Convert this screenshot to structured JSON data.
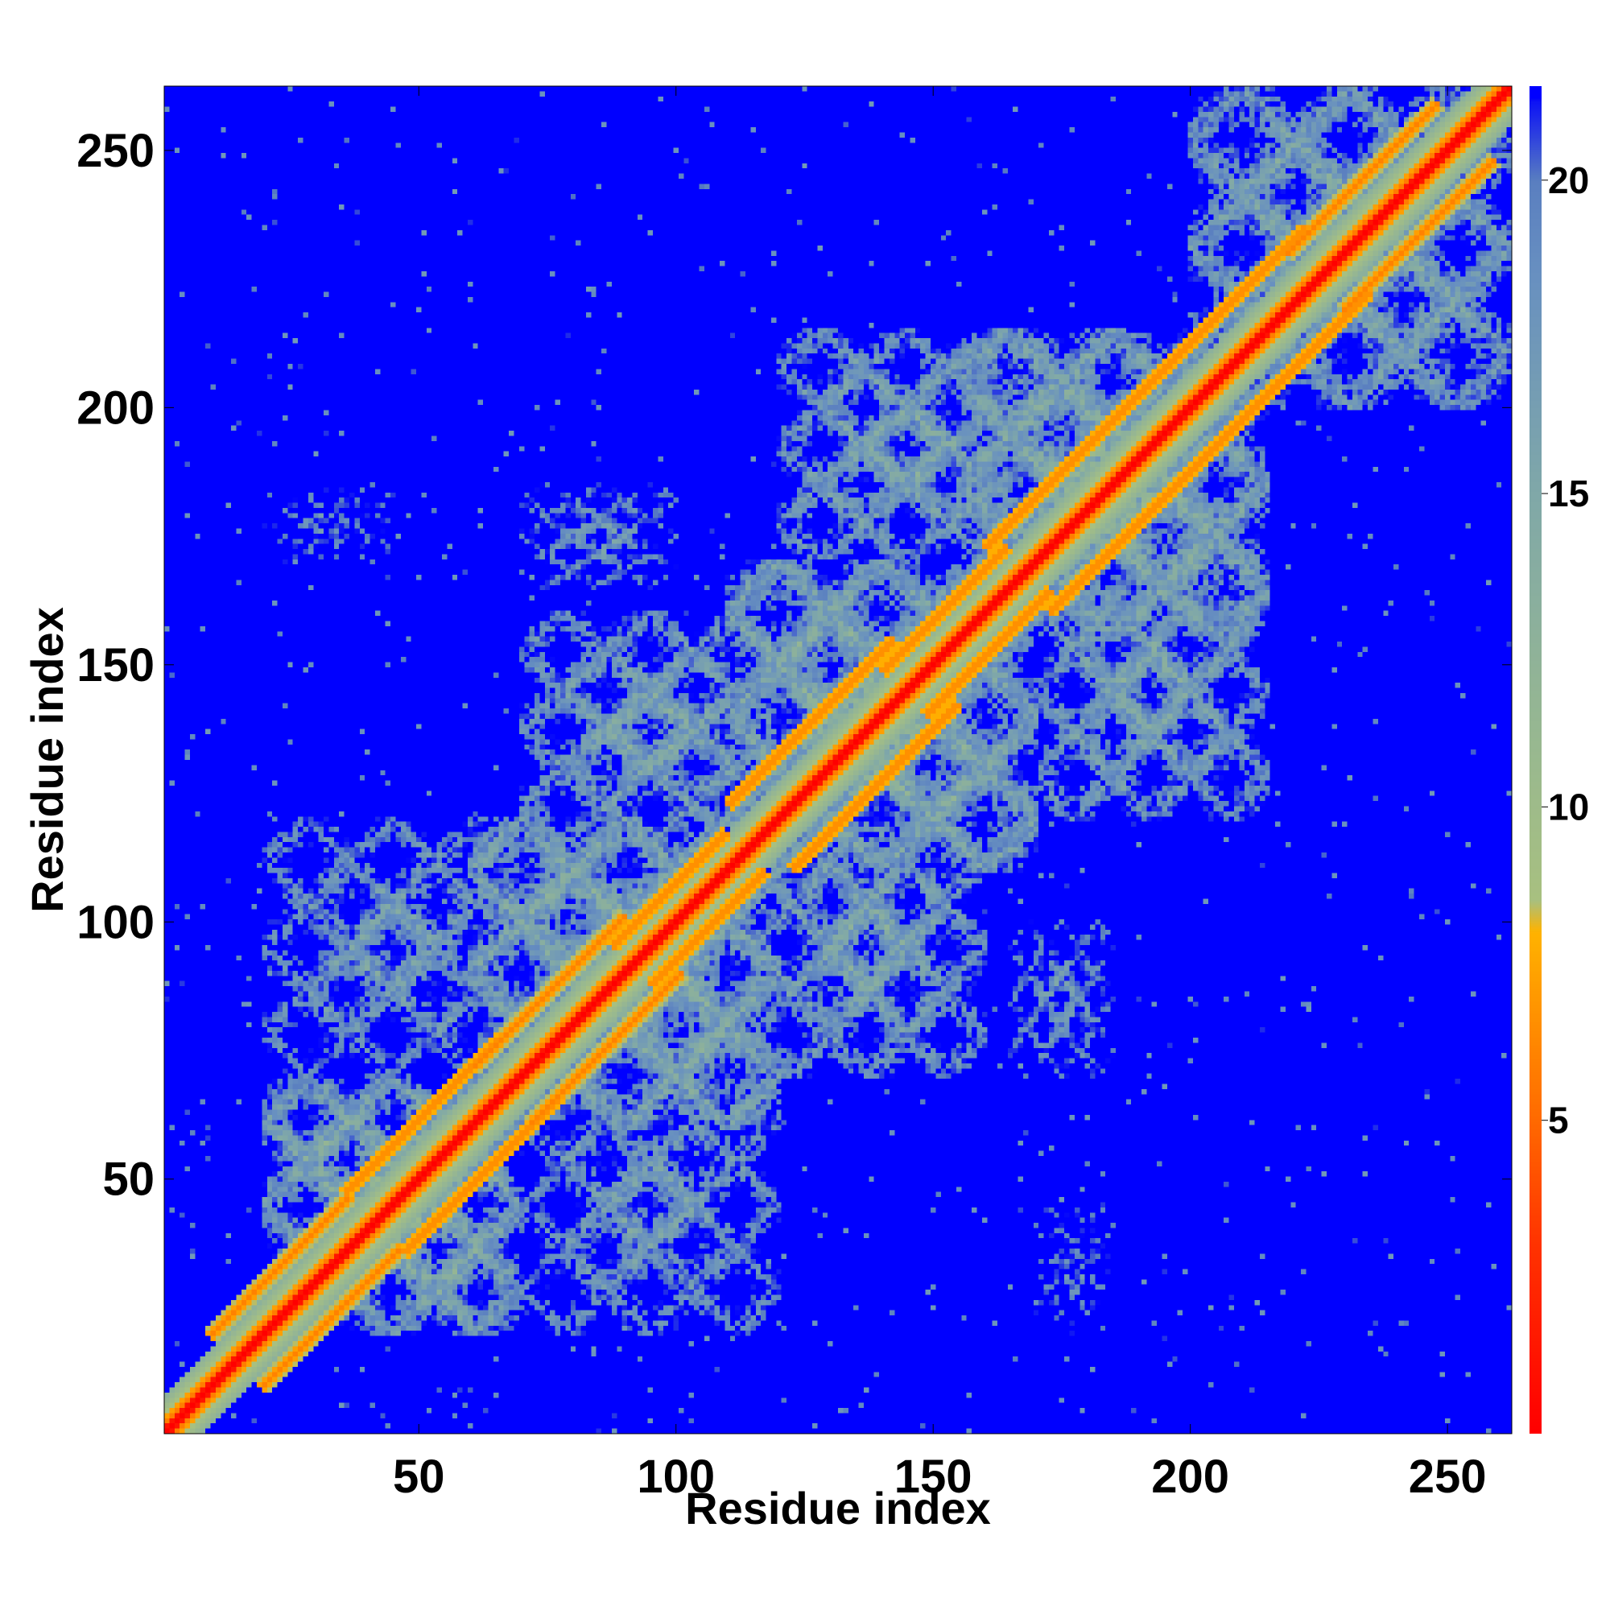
{
  "chart_data": {
    "type": "heatmap",
    "title": "",
    "xlabel": "Residue index",
    "ylabel": "Residue index",
    "x_range": [
      1,
      262
    ],
    "y_range": [
      1,
      262
    ],
    "x_ticks": [
      50,
      100,
      150,
      200,
      250
    ],
    "y_ticks": [
      50,
      100,
      150,
      200,
      250
    ],
    "colorbar": {
      "range": [
        0,
        21.5
      ],
      "ticks": [
        5,
        10,
        15,
        20
      ],
      "color_stops": [
        {
          "value": 0,
          "color": "#ff0000"
        },
        {
          "value": 3,
          "color": "#ff3300"
        },
        {
          "value": 5,
          "color": "#ff6a00"
        },
        {
          "value": 7,
          "color": "#ff9a00"
        },
        {
          "value": 8,
          "color": "#ffb300"
        },
        {
          "value": 8.5,
          "color": "#a8c080"
        },
        {
          "value": 11,
          "color": "#98b890"
        },
        {
          "value": 15,
          "color": "#80a8a8"
        },
        {
          "value": 18.5,
          "color": "#6890c0"
        },
        {
          "value": 20,
          "color": "#5a7fc0"
        },
        {
          "value": 21.5,
          "color": "#0000ff"
        }
      ],
      "out_of_range_color": "#0000ff"
    },
    "matrix_symmetric": true,
    "diagonal_value": 0,
    "helix_blocks": [
      [
        18,
        38
      ],
      [
        45,
        68
      ],
      [
        70,
        92
      ],
      [
        95,
        110
      ],
      [
        120,
        145
      ],
      [
        148,
        165
      ],
      [
        170,
        195
      ],
      [
        200,
        225
      ],
      [
        228,
        250
      ]
    ],
    "contact_regions": [
      {
        "x": [
          20,
          70
        ],
        "y": [
          20,
          70
        ],
        "mean_distance": 12
      },
      {
        "x": [
          60,
          120
        ],
        "y": [
          60,
          120
        ],
        "mean_distance": 12
      },
      {
        "x": [
          110,
          170
        ],
        "y": [
          110,
          170
        ],
        "mean_distance": 12
      },
      {
        "x": [
          155,
          215
        ],
        "y": [
          155,
          215
        ],
        "mean_distance": 12
      },
      {
        "x": [
          200,
          262
        ],
        "y": [
          200,
          262
        ],
        "mean_distance": 13
      },
      {
        "x": [
          120,
          170
        ],
        "y": [
          170,
          215
        ],
        "mean_distance": 14
      },
      {
        "x": [
          70,
          120
        ],
        "y": [
          115,
          160
        ],
        "mean_distance": 14
      },
      {
        "x": [
          20,
          70
        ],
        "y": [
          70,
          120
        ],
        "mean_distance": 15
      },
      {
        "x": [
          70,
          100
        ],
        "y": [
          165,
          185
        ],
        "mean_distance": 16
      },
      {
        "x": [
          20,
          45
        ],
        "y": [
          170,
          185
        ],
        "mean_distance": 17
      }
    ]
  }
}
